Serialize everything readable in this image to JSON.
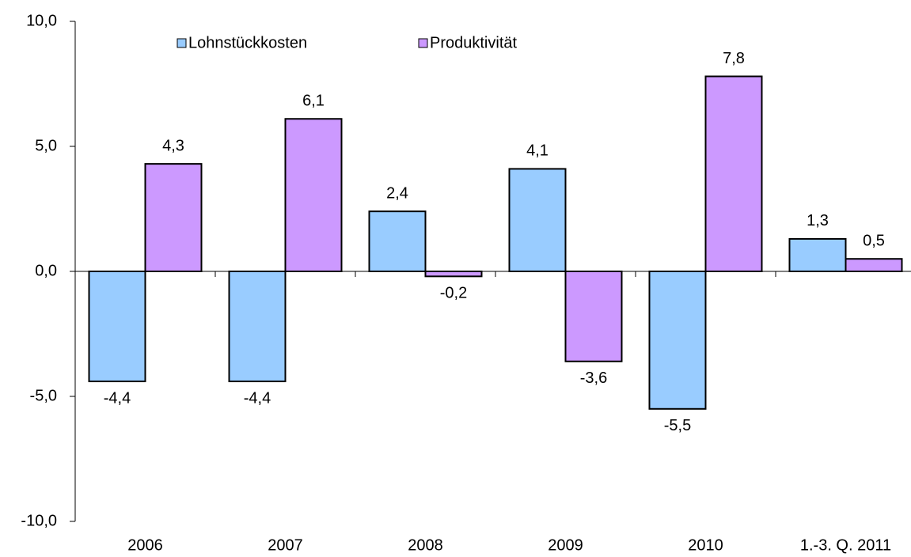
{
  "chart_data": {
    "type": "bar",
    "categories": [
      "2006",
      "2007",
      "2008",
      "2009",
      "2010",
      "1.-3. Q. 2011"
    ],
    "series": [
      {
        "name": "Lohnstückkosten",
        "color": "#99ccff",
        "values": [
          -4.4,
          -4.4,
          2.4,
          4.1,
          -5.5,
          1.3
        ],
        "value_labels": [
          "-4,4",
          "-4,4",
          "2,4",
          "4,1",
          "-5,5",
          "1,3"
        ]
      },
      {
        "name": "Produktivität",
        "color": "#cc99ff",
        "values": [
          4.3,
          6.1,
          -0.2,
          -3.6,
          7.8,
          0.5
        ],
        "value_labels": [
          "4,3",
          "6,1",
          "-0,2",
          "-3,6",
          "7,8",
          "0,5"
        ]
      }
    ],
    "ylim": [
      -10,
      10
    ],
    "yticks": [
      {
        "value": -10,
        "label": "-10,0"
      },
      {
        "value": -5,
        "label": "-5,0"
      },
      {
        "value": 0,
        "label": "0,0"
      },
      {
        "value": 5,
        "label": "5,0"
      },
      {
        "value": 10,
        "label": "10,0"
      }
    ],
    "grid": false
  }
}
